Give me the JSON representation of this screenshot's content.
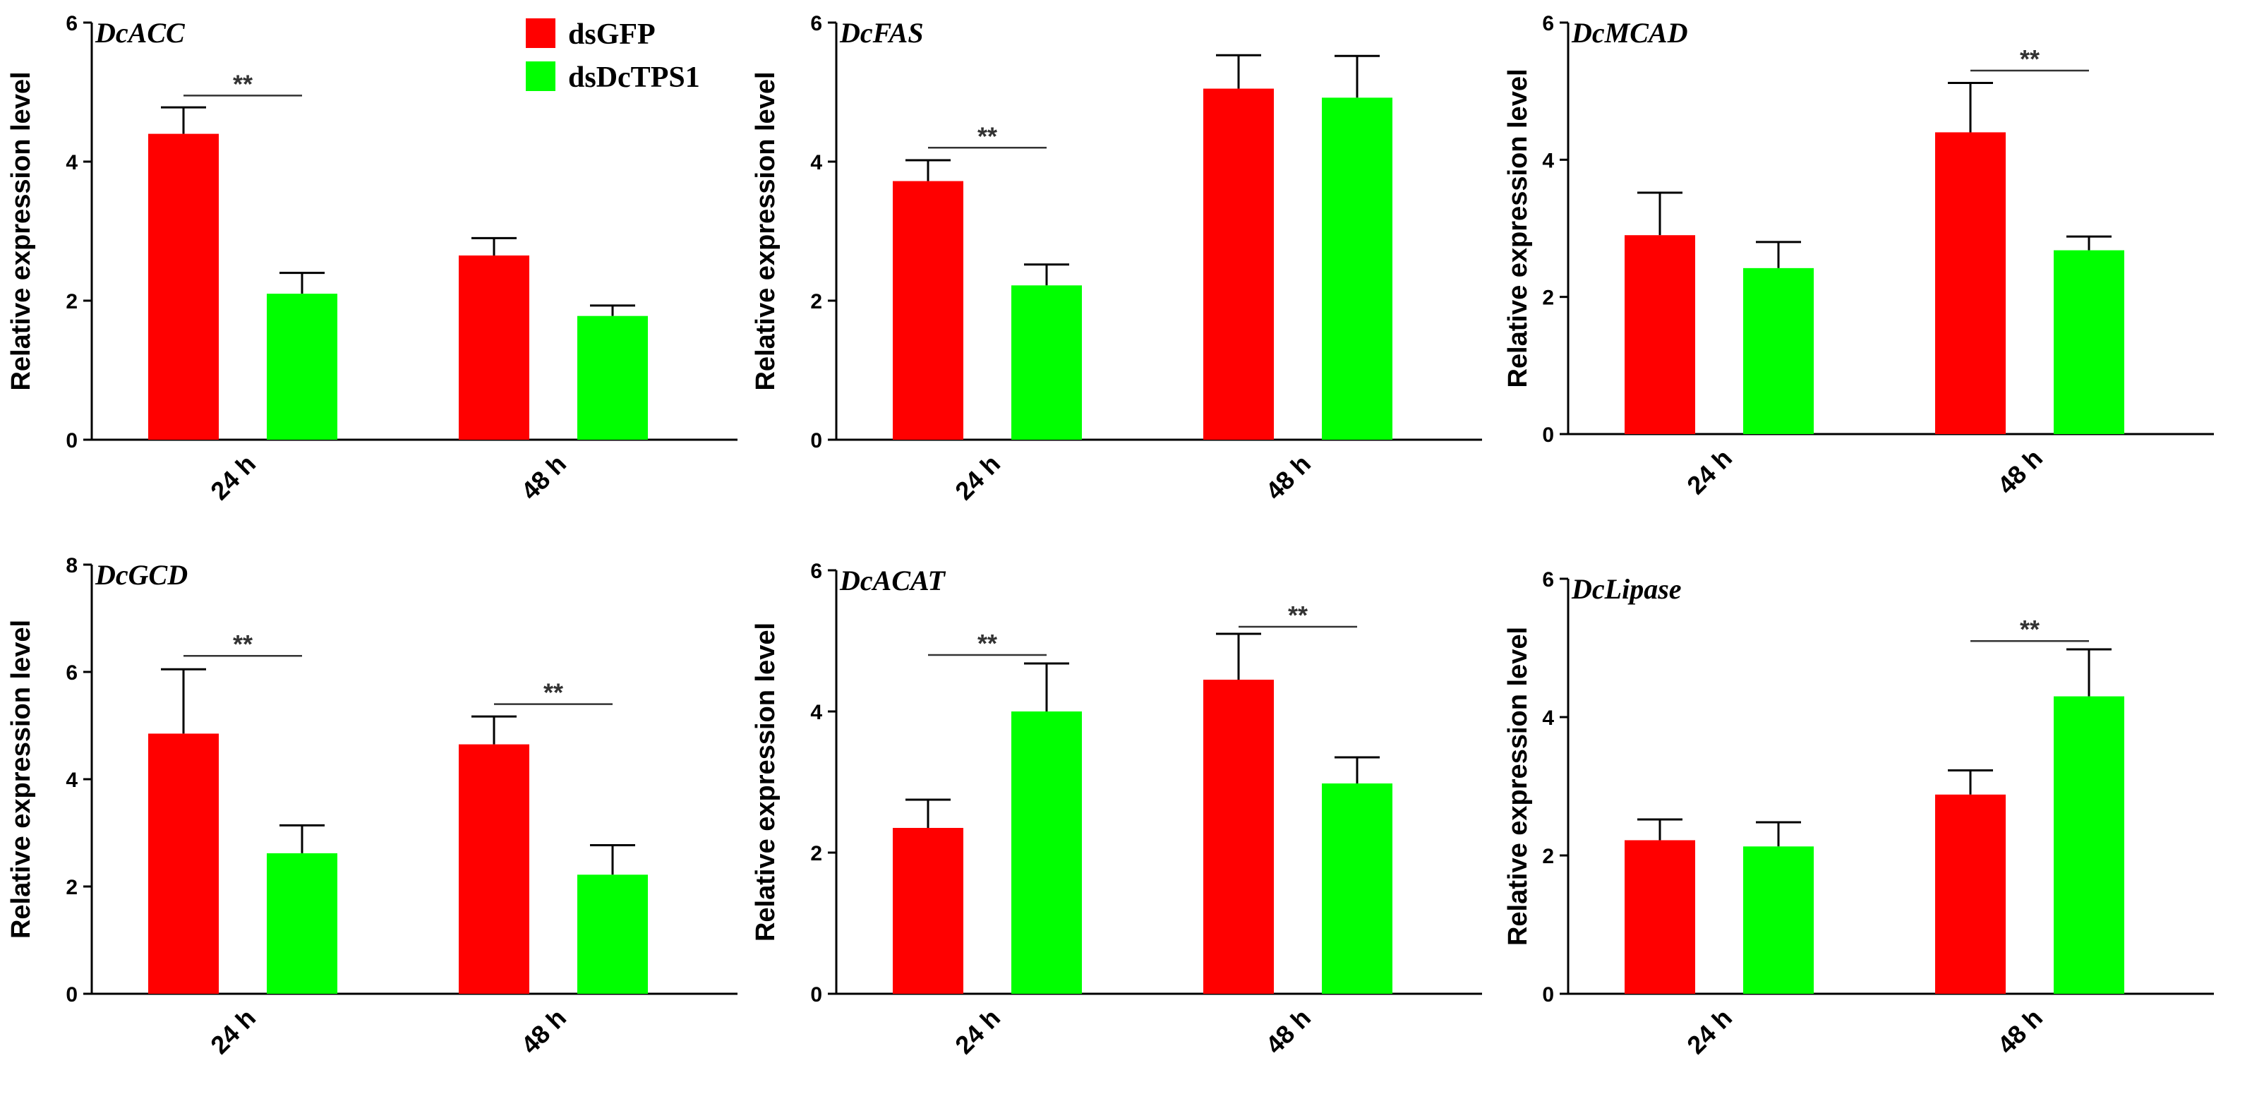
{
  "legend": {
    "items": [
      {
        "name": "dsGFP",
        "color": "#ff0000"
      },
      {
        "name": "dsDcTPS1",
        "color": "#00ff00"
      }
    ]
  },
  "chart_data": [
    {
      "type": "bar",
      "title": "DcACC",
      "ylabel": "Relative expression level",
      "categories": [
        "24 h",
        "48 h"
      ],
      "ylim": [
        0,
        6
      ],
      "yticks": [
        0,
        2,
        4,
        6
      ],
      "series": [
        {
          "name": "dsGFP",
          "values": [
            4.4,
            2.65
          ],
          "errors": [
            0.38,
            0.25
          ]
        },
        {
          "name": "dsDcTPS1",
          "values": [
            2.1,
            1.78
          ],
          "errors": [
            0.3,
            0.15
          ]
        }
      ],
      "significance": [
        {
          "category": 0,
          "label": "**",
          "y": 4.95
        }
      ]
    },
    {
      "type": "bar",
      "title": "DcFAS",
      "ylabel": "Relative expression level",
      "categories": [
        "24 h",
        "48 h"
      ],
      "ylim": [
        0,
        6
      ],
      "yticks": [
        0,
        2,
        4,
        6
      ],
      "series": [
        {
          "name": "dsGFP",
          "values": [
            3.72,
            5.05
          ],
          "errors": [
            0.3,
            0.48
          ]
        },
        {
          "name": "dsDcTPS1",
          "values": [
            2.22,
            4.92
          ],
          "errors": [
            0.3,
            0.6
          ]
        }
      ],
      "significance": [
        {
          "category": 0,
          "label": "**",
          "y": 4.2
        }
      ]
    },
    {
      "type": "bar",
      "title": "DcMCAD",
      "ylabel": "Relative expression level",
      "categories": [
        "24 h",
        "48 h"
      ],
      "ylim": [
        0,
        6
      ],
      "yticks": [
        0,
        2,
        4,
        6
      ],
      "series": [
        {
          "name": "dsGFP",
          "values": [
            2.9,
            4.4
          ],
          "errors": [
            0.62,
            0.72
          ]
        },
        {
          "name": "dsDcTPS1",
          "values": [
            2.42,
            2.68
          ],
          "errors": [
            0.38,
            0.2
          ]
        }
      ],
      "significance": [
        {
          "category": 1,
          "label": "**",
          "y": 5.3
        }
      ]
    },
    {
      "type": "bar",
      "title": "DcGCD",
      "ylabel": "Relative expression level",
      "categories": [
        "24 h",
        "48 h"
      ],
      "ylim": [
        0,
        8
      ],
      "yticks": [
        0,
        2,
        4,
        6,
        8
      ],
      "series": [
        {
          "name": "dsGFP",
          "values": [
            4.85,
            4.65
          ],
          "errors": [
            1.2,
            0.52
          ]
        },
        {
          "name": "dsDcTPS1",
          "values": [
            2.62,
            2.22
          ],
          "errors": [
            0.52,
            0.55
          ]
        }
      ],
      "significance": [
        {
          "category": 0,
          "label": "**",
          "y": 6.3
        },
        {
          "category": 1,
          "label": "**",
          "y": 5.4
        }
      ]
    },
    {
      "type": "bar",
      "title": "DcACAT",
      "ylabel": "Relative expression level",
      "categories": [
        "24 h",
        "48 h"
      ],
      "ylim": [
        0,
        6
      ],
      "yticks": [
        0,
        2,
        4,
        6
      ],
      "series": [
        {
          "name": "dsGFP",
          "values": [
            2.35,
            4.45
          ],
          "errors": [
            0.4,
            0.65
          ]
        },
        {
          "name": "dsDcTPS1",
          "values": [
            4.0,
            2.98
          ],
          "errors": [
            0.68,
            0.37
          ]
        }
      ],
      "significance": [
        {
          "category": 0,
          "label": "**",
          "y": 4.8
        },
        {
          "category": 1,
          "label": "**",
          "y": 5.2
        }
      ]
    },
    {
      "type": "bar",
      "title": "DcLipase",
      "ylabel": "Relative expression level",
      "categories": [
        "24 h",
        "48 h"
      ],
      "ylim": [
        0,
        6
      ],
      "yticks": [
        0,
        2,
        4,
        6
      ],
      "series": [
        {
          "name": "dsGFP",
          "values": [
            2.22,
            2.88
          ],
          "errors": [
            0.3,
            0.35
          ]
        },
        {
          "name": "dsDcTPS1",
          "values": [
            2.13,
            4.3
          ],
          "errors": [
            0.35,
            0.68
          ]
        }
      ],
      "significance": [
        {
          "category": 1,
          "label": "**",
          "y": 5.1
        }
      ]
    }
  ]
}
